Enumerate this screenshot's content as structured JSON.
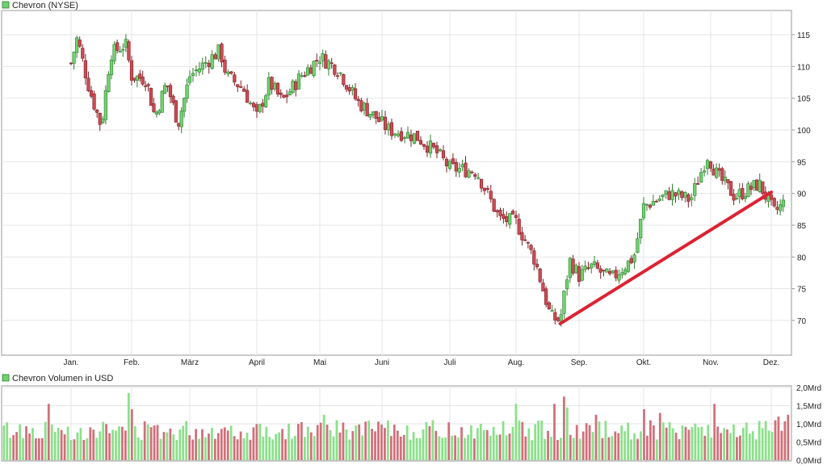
{
  "colors": {
    "up": "#6fd36f",
    "down": "#cc4b55",
    "up_border": "#2f7d2f",
    "down_border": "#7d1f25",
    "grid": "#e6e6e6",
    "trendline": "#dd2233",
    "vol_up": "#8be08b",
    "vol_down": "#d0707a"
  },
  "chart_data": [
    {
      "type": "candlestick",
      "legend": "Chevron (NYSE)",
      "y_ticks": [
        "70",
        "75",
        "80",
        "85",
        "90",
        "95",
        "100",
        "105",
        "110",
        "115"
      ],
      "ylim": [
        65,
        120
      ],
      "x_labels": [
        "Jan.",
        "Feb.",
        "März",
        "April",
        "Mai",
        "Juni",
        "Juli",
        "Aug.",
        "Sep.",
        "Okt.",
        "Nov.",
        "Dez."
      ],
      "grid": true,
      "trendline": {
        "start": {
          "month": 7.7,
          "value": 69.5
        },
        "end": {
          "month": 11.0,
          "value": 90.2
        }
      },
      "price_path": [
        [
          0.0,
          110.5
        ],
        [
          0.1,
          114.5
        ],
        [
          0.3,
          106.5
        ],
        [
          0.5,
          100.5
        ],
        [
          0.65,
          112.0
        ],
        [
          0.9,
          113.5
        ],
        [
          1.0,
          108.5
        ],
        [
          1.25,
          108.0
        ],
        [
          1.4,
          102.0
        ],
        [
          1.6,
          107.5
        ],
        [
          1.8,
          101.0
        ],
        [
          2.0,
          108.5
        ],
        [
          2.45,
          112.5
        ],
        [
          2.55,
          108.5
        ],
        [
          2.8,
          106.5
        ],
        [
          3.0,
          102.0
        ],
        [
          3.2,
          107.5
        ],
        [
          3.4,
          104.5
        ],
        [
          3.7,
          108.5
        ],
        [
          4.0,
          111.5
        ],
        [
          4.3,
          109.5
        ],
        [
          4.6,
          104.5
        ],
        [
          4.9,
          102.0
        ],
        [
          5.1,
          100.0
        ],
        [
          5.5,
          99.0
        ],
        [
          5.8,
          96.5
        ],
        [
          6.0,
          94.0
        ],
        [
          6.4,
          93.5
        ],
        [
          6.75,
          86.0
        ],
        [
          7.0,
          85.5
        ],
        [
          7.3,
          79.5
        ],
        [
          7.55,
          70.5
        ],
        [
          7.7,
          70.0
        ],
        [
          7.85,
          79.5
        ],
        [
          8.0,
          77.0
        ],
        [
          8.2,
          78.5
        ],
        [
          8.5,
          76.5
        ],
        [
          8.85,
          80.0
        ],
        [
          9.0,
          88.0
        ],
        [
          9.4,
          90.0
        ],
        [
          9.7,
          89.0
        ],
        [
          9.95,
          96.0
        ],
        [
          10.1,
          93.0
        ],
        [
          10.4,
          89.5
        ],
        [
          10.8,
          91.5
        ],
        [
          11.05,
          87.0
        ],
        [
          11.2,
          88.5
        ]
      ]
    },
    {
      "type": "bar",
      "legend": "Chevron Volumen in USD",
      "y_ticks": [
        "0,0Mrd",
        "0,5Mrd",
        "1,0Mrd",
        "1,5Mrd",
        "2,0Mrd"
      ],
      "ylim": [
        0,
        2.0
      ],
      "unit": "Mrd",
      "spikes": [
        {
          "index": 14,
          "value": 1.55
        },
        {
          "index": 39,
          "value": 1.85
        },
        {
          "index": 40,
          "value": 1.4
        },
        {
          "index": 100,
          "value": 1.25
        },
        {
          "index": 160,
          "value": 1.55
        },
        {
          "index": 172,
          "value": 1.55
        },
        {
          "index": 175,
          "value": 1.75
        },
        {
          "index": 176,
          "value": 1.45
        },
        {
          "index": 185,
          "value": 1.25
        },
        {
          "index": 200,
          "value": 1.4
        },
        {
          "index": 205,
          "value": 1.3
        },
        {
          "index": 222,
          "value": 1.55
        },
        {
          "index": 242,
          "value": 1.2
        },
        {
          "index": 245,
          "value": 1.25
        }
      ]
    }
  ]
}
